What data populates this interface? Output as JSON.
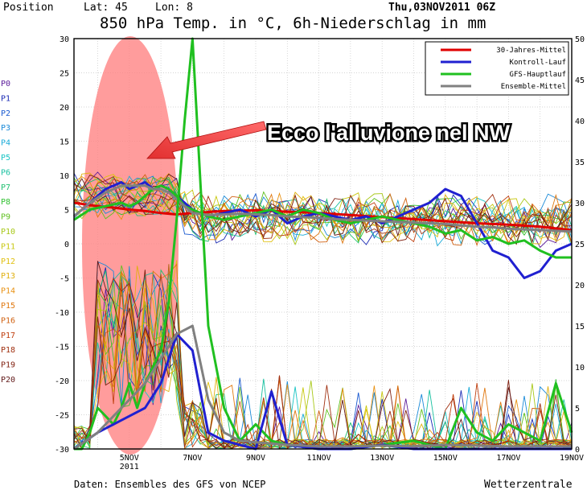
{
  "header": {
    "position_label": "Position",
    "lat": "Lat: 45",
    "lon": "Lon: 8",
    "date": "Thu,03NOV2011 06Z",
    "title": "850 hPa Temp. in °C, 6h-Niederschlag in mm"
  },
  "footer": {
    "source": "Daten: Ensembles des GFS von NCEP",
    "brand": "Wetterzentrale"
  },
  "annotation": {
    "text": "Ecco l'alluvione nel NW",
    "ellipse_color": "#ff8080",
    "arrow_color": "#e23030"
  },
  "members": [
    "P0",
    "P1",
    "P2",
    "P3",
    "P4",
    "P5",
    "P6",
    "P7",
    "P8",
    "P9",
    "P10",
    "P11",
    "P12",
    "P13",
    "P14",
    "P15",
    "P16",
    "P17",
    "P18",
    "P19",
    "P20"
  ],
  "member_colors": [
    "#5a1a9a",
    "#1a2ab4",
    "#1a5ad0",
    "#1a8ad8",
    "#18aad8",
    "#18c4c4",
    "#18c0a0",
    "#20c070",
    "#30c030",
    "#60c020",
    "#a8c818",
    "#c8c810",
    "#e0c010",
    "#e0b010",
    "#e89010",
    "#e07810",
    "#d06010",
    "#c04010",
    "#a03010",
    "#802010",
    "#601818"
  ],
  "chart_data": {
    "type": "line",
    "title": "850 hPa Temp. in °C, 6h-Niederschlag in mm",
    "xlabel": "",
    "ylabel": "",
    "x_ticks": [
      "5NOV\n2011",
      "7NOV",
      "9NOV",
      "11NOV",
      "13NOV",
      "15NOV",
      "17NOV",
      "19NOV"
    ],
    "x_range_days": [
      3.25,
      19.0
    ],
    "ylim_left": [
      -30,
      30
    ],
    "ylim_right": [
      0,
      50
    ],
    "y_ticks_left": [
      30,
      25,
      20,
      15,
      10,
      5,
      0,
      -5,
      -10,
      -15,
      -20,
      -25,
      -30
    ],
    "y_ticks_right": [
      50,
      45,
      40,
      35,
      30,
      25,
      20,
      15,
      10,
      5,
      0
    ],
    "grid": true,
    "legend_position": "top-right",
    "series": [
      {
        "name": "30-Jahres-Mittel",
        "color": "#e00000",
        "axis": "temp",
        "x": [
          3.25,
          4,
          4.5,
          5,
          5.5,
          6,
          6.5,
          7,
          8,
          9,
          10,
          11,
          12,
          13,
          14,
          15,
          16,
          17,
          18,
          19
        ],
        "y": [
          6,
          5.5,
          5.3,
          5,
          4.8,
          4.5,
          4.3,
          4.5,
          4.8,
          4.9,
          4.7,
          4.5,
          4.2,
          3.9,
          3.6,
          3.3,
          3.0,
          2.8,
          2.5,
          2.0
        ]
      },
      {
        "name": "Kontroll-Lauf",
        "color": "#2020d0",
        "axis": "temp",
        "x": [
          3.25,
          3.75,
          4.25,
          4.75,
          5,
          5.25,
          5.5,
          5.75,
          6,
          6.25,
          6.5,
          6.75,
          7,
          7.5,
          8,
          8.5,
          9,
          9.5,
          10,
          10.5,
          11,
          11.5,
          12,
          12.5,
          13,
          13.5,
          14,
          14.5,
          15,
          15.5,
          16,
          16.5,
          17,
          17.5,
          18,
          18.5,
          19
        ],
        "y": [
          4,
          6,
          8,
          9,
          8,
          8.5,
          9,
          8,
          8.5,
          8,
          7,
          6,
          5,
          4,
          4.5,
          5,
          4,
          5,
          3,
          4,
          4.5,
          4,
          3.5,
          4,
          3,
          4,
          5,
          6,
          8,
          7,
          3,
          -1,
          -2,
          -5,
          -4,
          -1,
          0
        ]
      },
      {
        "name": "GFS-Hauptlauf",
        "color": "#20c020",
        "axis": "temp",
        "x": [
          3.25,
          3.75,
          4.25,
          4.75,
          5,
          5.25,
          5.5,
          5.75,
          6,
          6.25,
          6.5,
          6.75,
          7,
          7.5,
          8,
          8.5,
          9,
          9.5,
          10,
          10.5,
          11,
          11.5,
          12,
          12.5,
          13,
          13.5,
          14,
          14.5,
          15,
          15.5,
          16,
          16.5,
          17,
          17.5,
          18,
          18.5,
          19
        ],
        "y": [
          3.5,
          5,
          5.5,
          6,
          5.5,
          6,
          7,
          8,
          8.5,
          8,
          7,
          5.5,
          5,
          4,
          3.5,
          4,
          4.5,
          5,
          4,
          5,
          4.5,
          3.5,
          3,
          3.5,
          4,
          3.5,
          3,
          2.5,
          1.5,
          2,
          0.5,
          1,
          0,
          0.5,
          -1,
          -2,
          -2
        ]
      },
      {
        "name": "Ensemble-Mittel",
        "color": "#808080",
        "axis": "temp",
        "x": [
          3.25,
          3.75,
          4.25,
          4.75,
          5,
          5.25,
          5.5,
          5.75,
          6,
          6.25,
          6.5,
          6.75,
          7,
          7.5,
          8,
          8.5,
          9,
          9.5,
          10,
          10.5,
          11,
          11.5,
          12,
          12.5,
          13,
          13.5,
          14,
          14.5,
          15,
          15.5,
          16,
          16.5,
          17,
          17.5,
          18,
          18.5,
          19
        ],
        "y": [
          4,
          6,
          7.5,
          8.5,
          8.5,
          8.5,
          8.5,
          8,
          8,
          7.5,
          6.5,
          5.5,
          4.5,
          4.2,
          4.3,
          4.4,
          4.3,
          4.2,
          4,
          3.9,
          3.8,
          3.6,
          3.5,
          3.4,
          3.3,
          3.2,
          3.1,
          3,
          2.9,
          2.7,
          2.5,
          2.4,
          2.2,
          2.1,
          2,
          1.9,
          1.8
        ]
      },
      {
        "name": "GFS-Hauptlauf",
        "color": "#20c020",
        "axis": "precip",
        "x": [
          3.25,
          3.5,
          3.75,
          4,
          4.25,
          4.5,
          4.75,
          5,
          5.25,
          5.5,
          5.75,
          6,
          6.25,
          6.5,
          6.75,
          7,
          7.5,
          8,
          8.5,
          9,
          9.5,
          10,
          11,
          12,
          13,
          14,
          14.5,
          15,
          15.5,
          16,
          16.5,
          17,
          17.5,
          18,
          18.5,
          19
        ],
        "y": [
          0,
          0,
          2,
          5,
          4,
          3,
          5,
          8,
          5,
          8,
          10,
          12,
          18,
          28,
          40,
          50,
          15,
          5,
          1,
          3,
          1,
          0.5,
          0,
          0,
          0.5,
          1,
          0.5,
          0,
          5,
          2,
          1,
          3,
          2,
          1,
          8,
          2
        ]
      },
      {
        "name": "Kontroll-Lauf",
        "color": "#2020d0",
        "axis": "precip",
        "x": [
          3.25,
          4,
          4.5,
          5,
          5.5,
          6,
          6.5,
          7,
          7.5,
          8,
          8.5,
          9,
          9.5,
          10,
          11,
          12,
          13,
          14,
          15,
          16,
          17,
          18,
          19
        ],
        "y": [
          0,
          2,
          3,
          4,
          5,
          8,
          14,
          12,
          2,
          1,
          0.5,
          0,
          7,
          0.5,
          0,
          0,
          0.5,
          0,
          0,
          0,
          0,
          0,
          0
        ]
      },
      {
        "name": "Ensemble-Mittel",
        "color": "#808080",
        "axis": "precip",
        "x": [
          3.25,
          4,
          4.5,
          5,
          5.5,
          6,
          6.5,
          7,
          7.5,
          8,
          8.5,
          9,
          10,
          11,
          12,
          13,
          14,
          15,
          16,
          17,
          18,
          19
        ],
        "y": [
          0,
          2,
          4,
          6,
          8,
          11,
          14,
          15,
          6,
          2,
          1,
          0.8,
          0.5,
          0.3,
          0.3,
          0.4,
          0.3,
          0.5,
          0.4,
          0.3,
          0.3,
          0.3
        ]
      }
    ]
  }
}
